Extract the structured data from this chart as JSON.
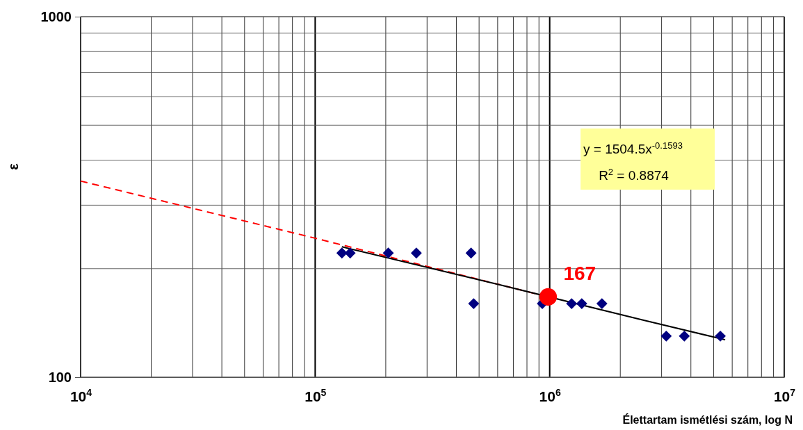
{
  "chart_data": {
    "type": "scatter",
    "xlabel": "Élettartam ismétlési szám, log N",
    "ylabel": "ε",
    "log": "xy",
    "grid": true,
    "xlim": [
      10000,
      10000000
    ],
    "ylim": [
      100,
      1000
    ],
    "xticks": [
      {
        "value": 10000,
        "label": "10$^{4}$"
      },
      {
        "value": 100000,
        "label": "10$^{5}$"
      },
      {
        "value": 1000000,
        "label": "10$^{6}$"
      },
      {
        "value": 10000000,
        "label": "10$^{7}$"
      }
    ],
    "yticks": [
      100,
      1000
    ],
    "series": [
      {
        "type": "line",
        "color": "#ff0000",
        "line_style": "dashed",
        "marker": "none",
        "x": [
          10000,
          100000,
          950000
        ],
        "values": [
          350,
          243,
          168
        ]
      },
      {
        "type": "line",
        "color": "#000000",
        "line_style": "solid",
        "marker": "none",
        "x": [
          130000,
          600000,
          2500000,
          5600000
        ],
        "values": [
          230,
          181,
          144,
          127
        ]
      },
      {
        "color": "#000080",
        "marker": "diamond",
        "x": [
          130000,
          141000,
          205000,
          270000,
          462000,
          474000,
          930000,
          1240000,
          1370000,
          1670000,
          3140000,
          3750000,
          5340000
        ],
        "values": [
          221,
          221,
          221,
          221,
          221,
          160,
          160,
          160,
          160,
          160,
          130,
          130,
          130
        ]
      },
      {
        "color": "#ff0000",
        "marker": "circle",
        "x": [
          985000
        ],
        "values": [
          167
        ],
        "value_labels": [
          "167"
        ]
      }
    ],
    "annotations": [
      "y = 1504.5x$^{-0.1593}$",
      "R$^{2}$ = 0.8874"
    ]
  }
}
